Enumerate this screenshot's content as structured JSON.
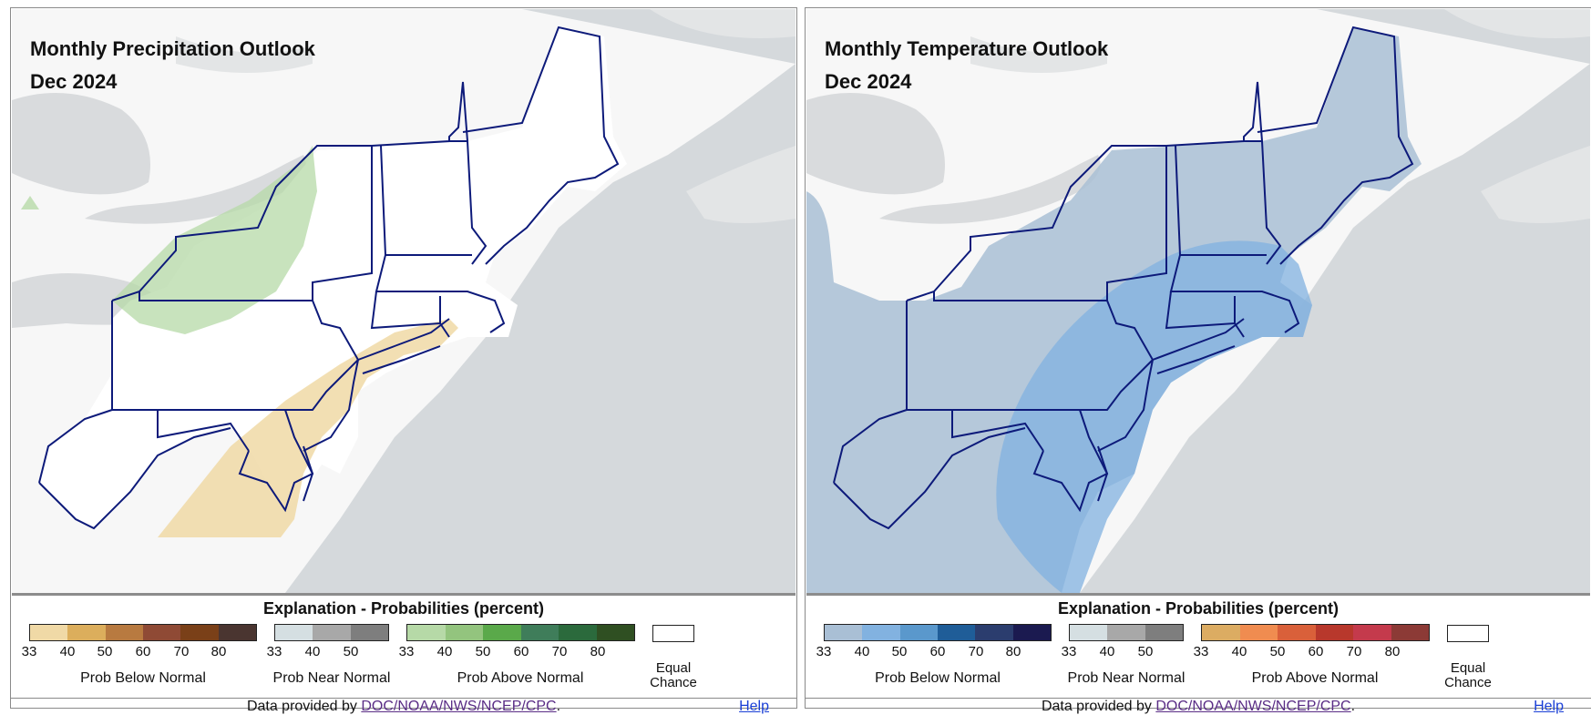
{
  "panels": [
    {
      "title": "Monthly Precipitation Outlook",
      "subtitle": "Dec 2024",
      "legend_title": "Explanation - Probabilities (percent)",
      "groups": [
        {
          "name": "Prob Below Normal",
          "colors": [
            "#f0d9a6",
            "#dcae5c",
            "#b87a40",
            "#8f4a35",
            "#7a4018",
            "#4a3530"
          ],
          "ticks": [
            "33",
            "40",
            "50",
            "60",
            "70",
            "80"
          ]
        },
        {
          "name": "Prob Near Normal",
          "colors": [
            "#d5dfe2",
            "#a8a8a8",
            "#7e7e7e"
          ],
          "ticks": [
            "33",
            "40",
            "50"
          ]
        },
        {
          "name": "Prob Above Normal",
          "colors": [
            "#b6d9a7",
            "#93c47e",
            "#5aa94a",
            "#3f7d5a",
            "#2b6a3c",
            "#2f4f22"
          ],
          "ticks": [
            "33",
            "40",
            "50",
            "60",
            "70",
            "80"
          ]
        }
      ],
      "equal_chance": "Equal Chance",
      "footer_prefix": "Data provided by",
      "footer_link": "DOC/NOAA/NWS/NCEP/CPC",
      "footer_suffix": ".",
      "help": "Help",
      "overlays": [
        {
          "category": "Above Normal",
          "level": "33-40",
          "color": "#b6d9a7"
        },
        {
          "category": "Below Normal",
          "level": "33-40",
          "color": "#f0d9a6"
        }
      ]
    },
    {
      "title": "Monthly Temperature Outlook",
      "subtitle": "Dec 2024",
      "legend_title": "Explanation - Probabilities (percent)",
      "groups": [
        {
          "name": "Prob Below Normal",
          "colors": [
            "#a9bfd5",
            "#82b2e0",
            "#5a98cc",
            "#1f5d98",
            "#2b3d6e",
            "#1b1a50"
          ],
          "ticks": [
            "33",
            "40",
            "50",
            "60",
            "70",
            "80"
          ]
        },
        {
          "name": "Prob Near Normal",
          "colors": [
            "#d5dfe2",
            "#a8a8a8",
            "#7e7e7e"
          ],
          "ticks": [
            "33",
            "40",
            "50"
          ]
        },
        {
          "name": "Prob Above Normal",
          "colors": [
            "#dcac62",
            "#f08c50",
            "#d9603a",
            "#b8382c",
            "#c43a4c",
            "#8c3a36"
          ],
          "ticks": [
            "33",
            "40",
            "50",
            "60",
            "70",
            "80"
          ]
        }
      ],
      "equal_chance": "Equal Chance",
      "footer_prefix": "Data provided by",
      "footer_link": "DOC/NOAA/NWS/NCEP/CPC",
      "footer_suffix": ".",
      "help": "Help",
      "overlays": [
        {
          "category": "Below Normal",
          "level": "33-40",
          "color": "#a9bfd5"
        },
        {
          "category": "Below Normal",
          "level": "40-50",
          "color": "#82b2e0"
        }
      ]
    }
  ]
}
